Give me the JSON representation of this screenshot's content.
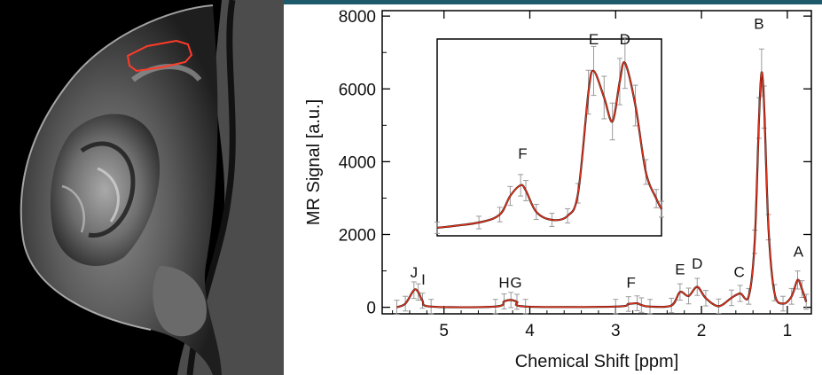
{
  "colors": {
    "fit": "#e0331c",
    "data": "#000000",
    "errorbar": "#9a9a9a",
    "roi": "#ff3b2a",
    "topbar": "#1d5a6b"
  },
  "mri": {
    "roi_outline": "red region of interest"
  },
  "chart_data": [
    {
      "type": "line",
      "xlabel": "Chemical Shift [ppm]",
      "ylabel": "MR Signal [a.u.]",
      "xlim": [
        5.72,
        0.72
      ],
      "x_reversed": true,
      "ylim": [
        -180,
        8150
      ],
      "xticks": [
        5,
        4,
        3,
        2,
        1
      ],
      "yticks": [
        0,
        2000,
        4000,
        6000,
        8000
      ],
      "series": [
        {
          "x": [
            5.55,
            5.45,
            5.35,
            5.3,
            5.25,
            5.15,
            4.4,
            4.3,
            4.22,
            4.15,
            4.05,
            3.0,
            2.85,
            2.75,
            2.7,
            2.6,
            2.35,
            2.25,
            2.15,
            2.05,
            1.95,
            1.8,
            1.65,
            1.55,
            1.45,
            1.38,
            1.33,
            1.3,
            1.27,
            1.22,
            1.15,
            1.05,
            0.95,
            0.88,
            0.83,
            0.78
          ],
          "y": [
            0,
            100,
            470,
            420,
            180,
            20,
            20,
            160,
            200,
            150,
            20,
            20,
            90,
            110,
            60,
            20,
            50,
            420,
            310,
            560,
            250,
            30,
            260,
            380,
            300,
            1800,
            5200,
            6450,
            5500,
            2200,
            400,
            100,
            300,
            750,
            500,
            150
          ]
        }
      ],
      "peak_labels": [
        {
          "text": "J",
          "x": 5.35,
          "y": 820
        },
        {
          "text": "I",
          "x": 5.24,
          "y": 620
        },
        {
          "text": "H",
          "x": 4.3,
          "y": 540
        },
        {
          "text": "G",
          "x": 4.16,
          "y": 540
        },
        {
          "text": "F",
          "x": 2.82,
          "y": 540
        },
        {
          "text": "E",
          "x": 2.25,
          "y": 900
        },
        {
          "text": "D",
          "x": 2.05,
          "y": 1060
        },
        {
          "text": "C",
          "x": 1.56,
          "y": 830
        },
        {
          "text": "B",
          "x": 1.33,
          "y": 7650
        },
        {
          "text": "A",
          "x": 0.87,
          "y": 1390
        }
      ],
      "grid": false
    },
    {
      "type": "line",
      "role": "inset",
      "xlim": [
        4.6,
        2.45
      ],
      "ylim": [
        -20,
        720
      ],
      "series": [
        {
          "x": [
            4.6,
            4.2,
            4.0,
            3.9,
            3.8,
            3.75,
            3.65,
            3.5,
            3.35,
            3.25,
            3.15,
            3.1,
            3.0,
            2.92,
            2.85,
            2.8,
            2.7,
            2.6,
            2.5,
            2.45
          ],
          "y": [
            10,
            30,
            60,
            130,
            170,
            150,
            70,
            40,
            55,
            140,
            520,
            600,
            500,
            410,
            560,
            630,
            470,
            220,
            120,
            80
          ]
        }
      ],
      "peak_labels": [
        {
          "text": "F",
          "x": 3.78,
          "y": 270
        },
        {
          "text": "E",
          "x": 3.1,
          "y": 700
        },
        {
          "text": "D",
          "x": 2.8,
          "y": 700
        }
      ]
    }
  ]
}
